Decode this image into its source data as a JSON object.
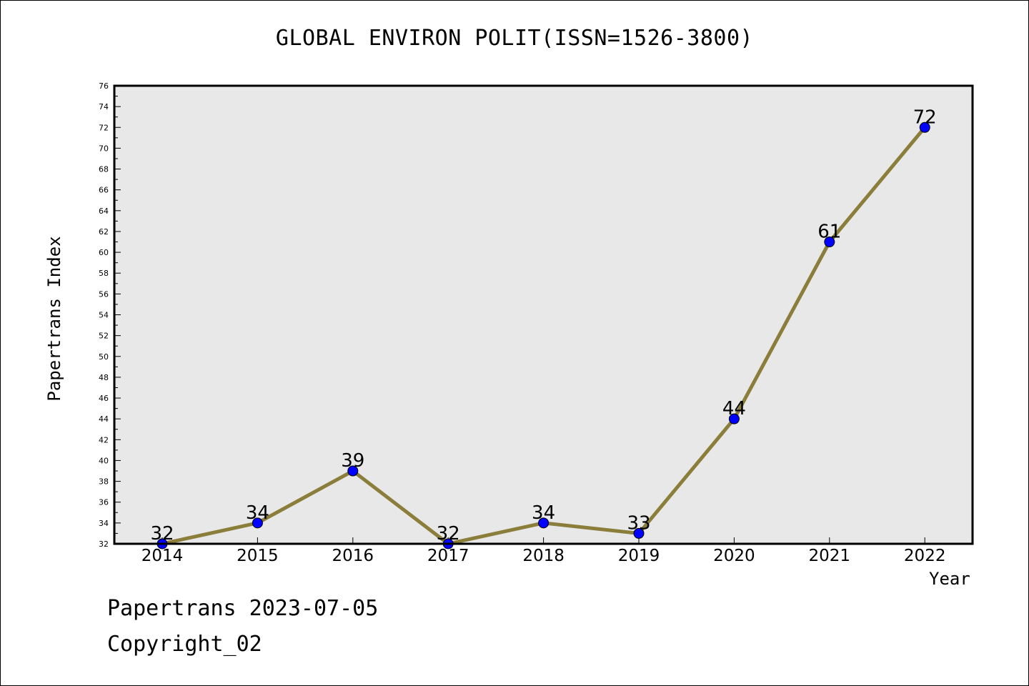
{
  "title": "GLOBAL ENVIRON POLIT(ISSN=1526-3800)",
  "footer": {
    "line1": "Papertrans 2023-07-05",
    "line2": "Copyright_02"
  },
  "colors": {
    "plot_background": "#e8e8e8",
    "line": "#8b7d3a",
    "marker": "#0000ff",
    "text": "#000000"
  },
  "chart_data": {
    "type": "line",
    "title": "GLOBAL ENVIRON POLIT(ISSN=1526-3800)",
    "xlabel": "Year",
    "ylabel": "Papertrans Index",
    "categories": [
      "2014",
      "2015",
      "2016",
      "2017",
      "2018",
      "2019",
      "2020",
      "2021",
      "2022"
    ],
    "values": [
      32,
      34,
      39,
      32,
      34,
      33,
      44,
      61,
      72
    ],
    "ylim": [
      32,
      76
    ],
    "ytick_step": 2,
    "grid": false,
    "legend": "none",
    "data_labels": true
  }
}
